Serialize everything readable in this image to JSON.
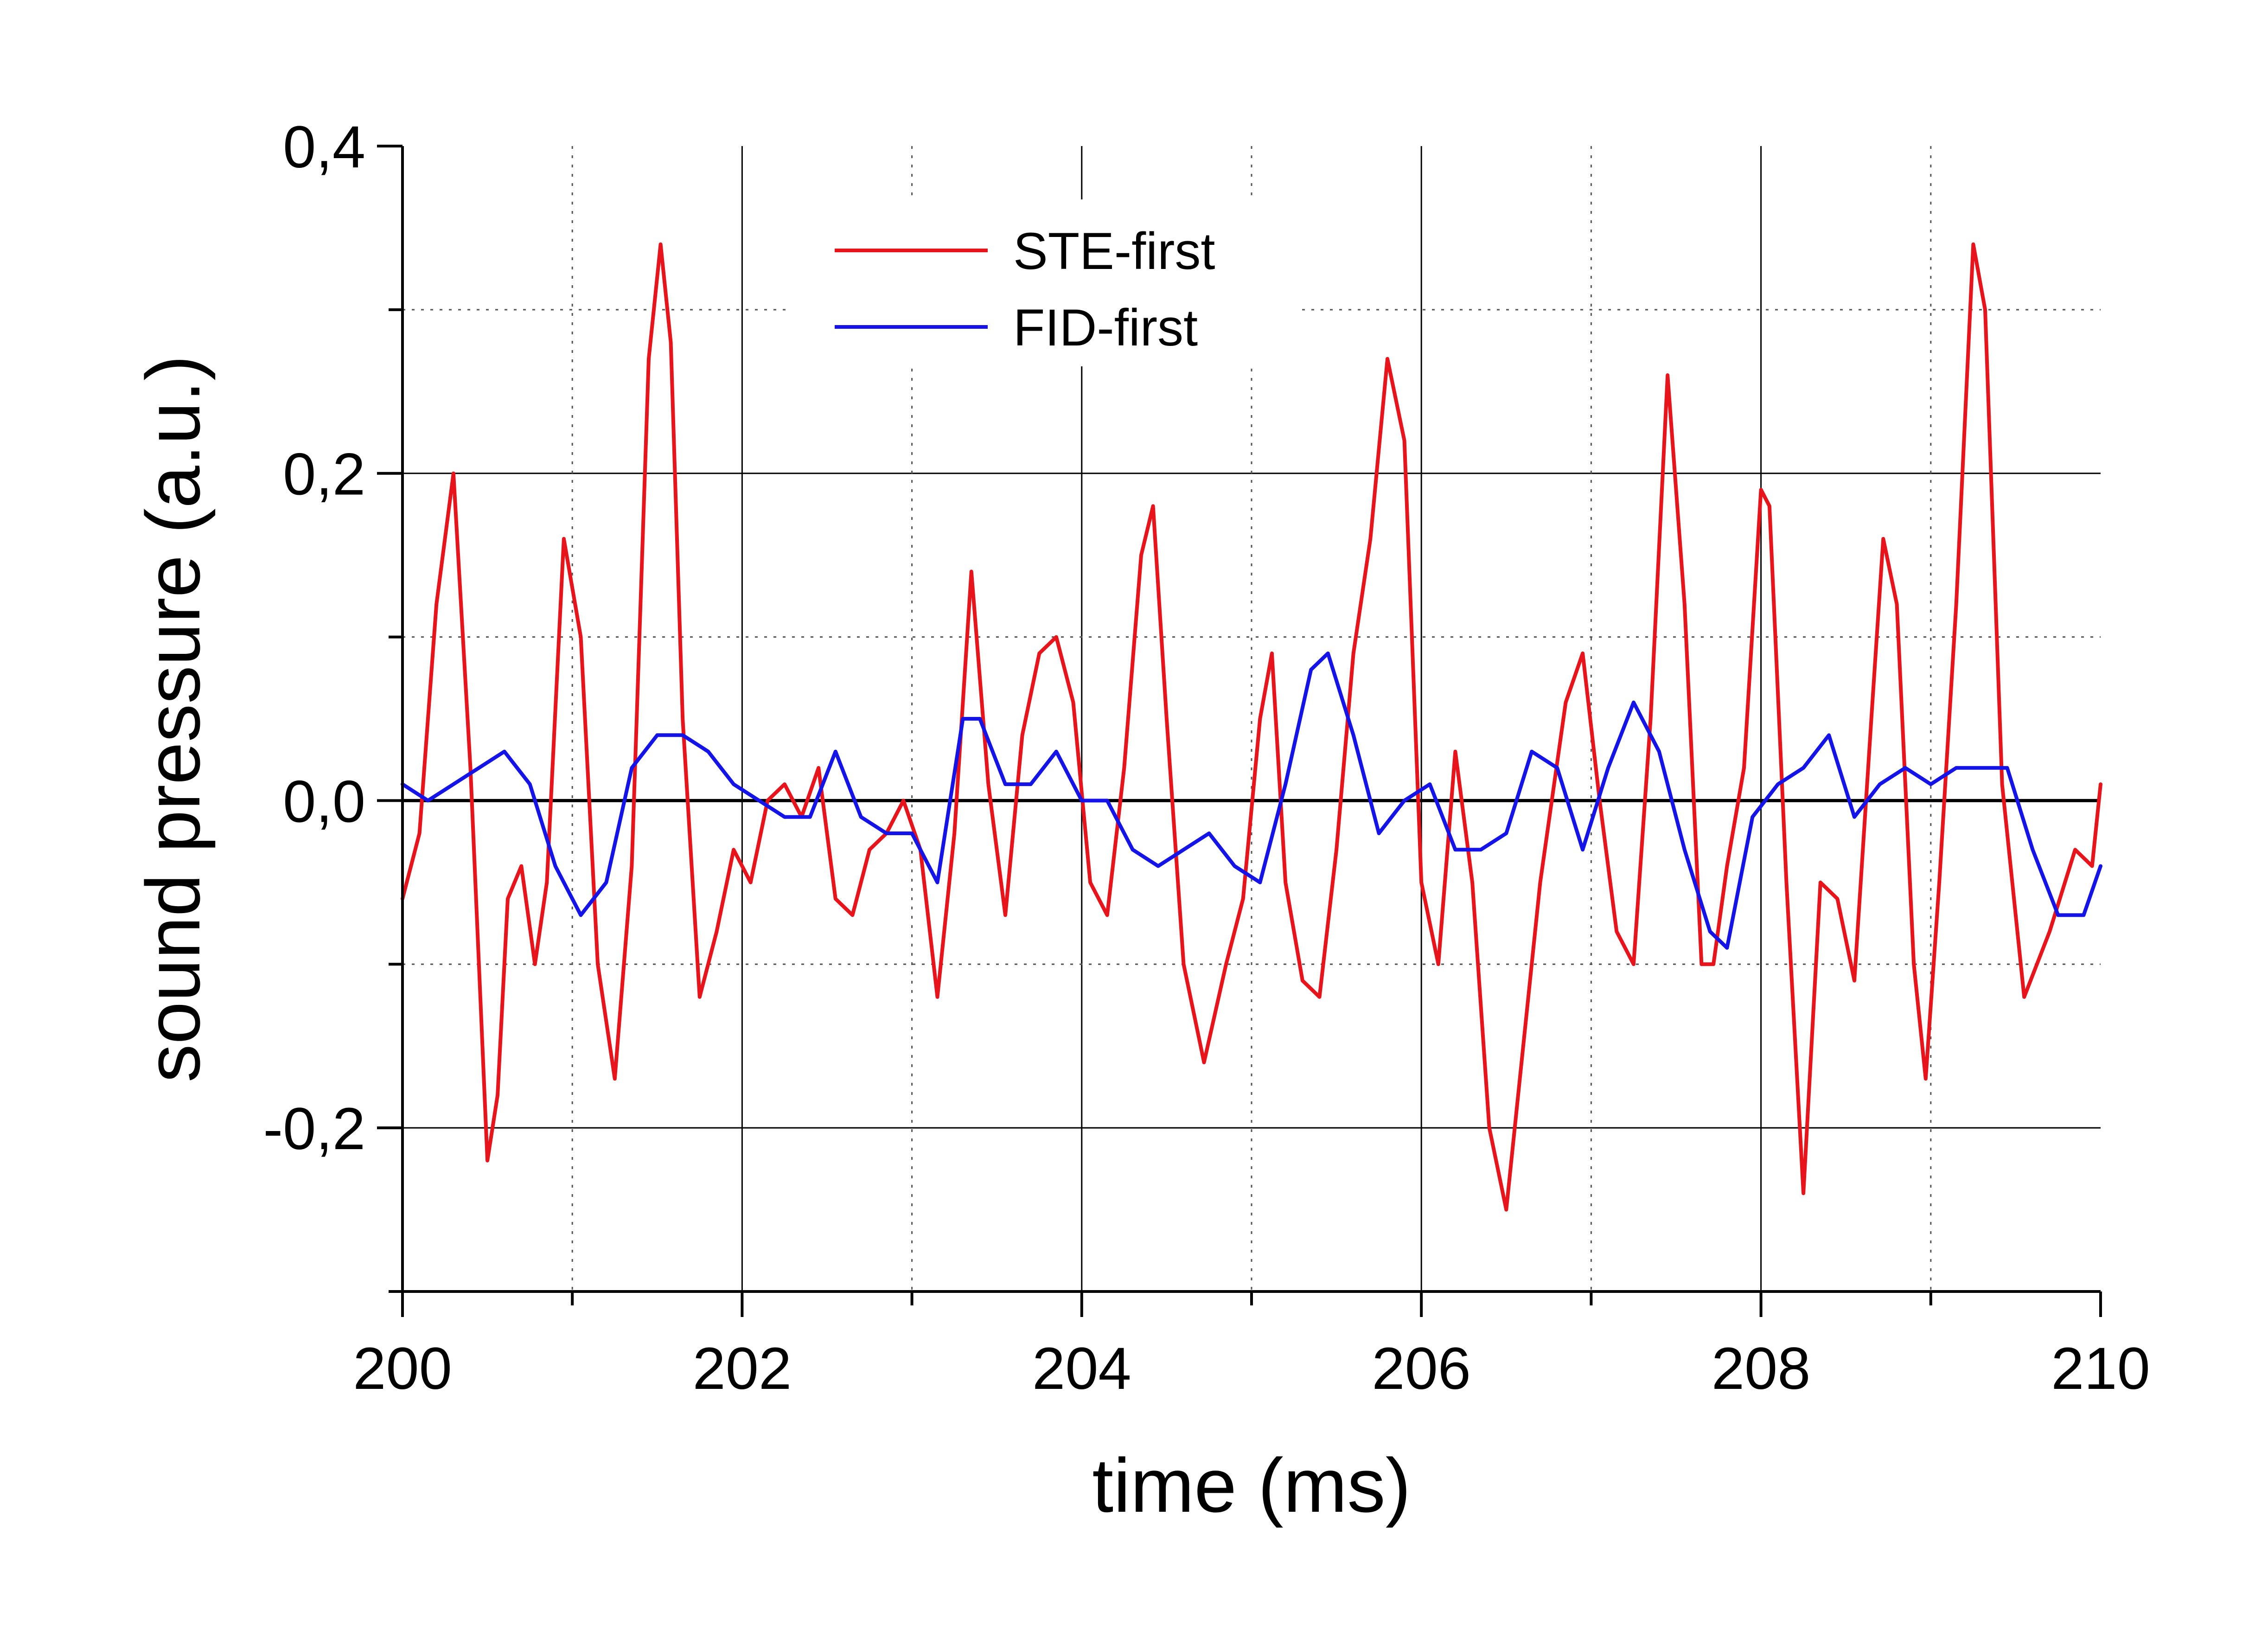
{
  "chart_data": {
    "type": "line",
    "title": "",
    "xlabel": "time (ms)",
    "ylabel": "sound pressure (a.u.)",
    "xlim": [
      200,
      210
    ],
    "ylim": [
      -0.3,
      0.4
    ],
    "x_major_ticks": [
      200,
      202,
      204,
      206,
      208,
      210
    ],
    "x_major_tick_labels": [
      "200",
      "202",
      "204",
      "206",
      "208",
      "210"
    ],
    "x_minor_ticks": [
      201,
      203,
      205,
      207,
      209
    ],
    "y_major_ticks": [
      -0.2,
      0.0,
      0.2,
      0.4
    ],
    "y_major_tick_labels": [
      "-0,2",
      "0,0",
      "0,2",
      "0,4"
    ],
    "y_minor_ticks": [
      -0.3,
      -0.1,
      0.1,
      0.3
    ],
    "grid": true,
    "legend": {
      "position": "top-center"
    },
    "series": [
      {
        "name": "STE-first",
        "color": "#e8141c",
        "x": [
          200.0,
          200.1,
          200.2,
          200.3,
          200.4,
          200.5,
          200.56,
          200.62,
          200.7,
          200.78,
          200.85,
          200.95,
          201.05,
          201.15,
          201.25,
          201.35,
          201.45,
          201.52,
          201.58,
          201.65,
          201.75,
          201.85,
          201.95,
          202.05,
          202.15,
          202.25,
          202.35,
          202.45,
          202.55,
          202.65,
          202.75,
          202.85,
          202.95,
          203.05,
          203.15,
          203.25,
          203.35,
          203.45,
          203.55,
          203.65,
          203.75,
          203.85,
          203.95,
          204.05,
          204.15,
          204.25,
          204.35,
          204.42,
          204.5,
          204.6,
          204.72,
          204.85,
          204.95,
          205.05,
          205.12,
          205.2,
          205.3,
          205.4,
          205.5,
          205.6,
          205.7,
          205.8,
          205.9,
          206.0,
          206.1,
          206.2,
          206.3,
          206.4,
          206.5,
          206.6,
          206.7,
          206.85,
          206.95,
          207.05,
          207.15,
          207.25,
          207.35,
          207.45,
          207.55,
          207.65,
          207.72,
          207.8,
          207.9,
          208.0,
          208.05,
          208.15,
          208.25,
          208.35,
          208.45,
          208.55,
          208.65,
          208.72,
          208.8,
          208.9,
          208.97,
          209.05,
          209.15,
          209.25,
          209.32,
          209.42,
          209.55,
          209.7,
          209.85,
          209.95,
          210.0
        ],
        "values": [
          -0.06,
          -0.02,
          0.12,
          0.2,
          0.02,
          -0.22,
          -0.18,
          -0.06,
          -0.04,
          -0.1,
          -0.05,
          0.16,
          0.1,
          -0.1,
          -0.17,
          -0.04,
          0.27,
          0.34,
          0.28,
          0.05,
          -0.12,
          -0.08,
          -0.03,
          -0.05,
          0.0,
          0.01,
          -0.01,
          0.02,
          -0.06,
          -0.07,
          -0.03,
          -0.02,
          0.0,
          -0.03,
          -0.12,
          -0.02,
          0.14,
          0.01,
          -0.07,
          0.04,
          0.09,
          0.1,
          0.06,
          -0.05,
          -0.07,
          0.02,
          0.15,
          0.18,
          0.05,
          -0.1,
          -0.16,
          -0.1,
          -0.06,
          0.05,
          0.09,
          -0.05,
          -0.11,
          -0.12,
          -0.03,
          0.09,
          0.16,
          0.27,
          0.22,
          -0.05,
          -0.1,
          0.03,
          -0.05,
          -0.2,
          -0.25,
          -0.15,
          -0.05,
          0.06,
          0.09,
          0.0,
          -0.08,
          -0.1,
          0.05,
          0.26,
          0.12,
          -0.1,
          -0.1,
          -0.04,
          0.02,
          0.19,
          0.18,
          -0.05,
          -0.24,
          -0.05,
          -0.06,
          -0.11,
          0.05,
          0.16,
          0.12,
          -0.1,
          -0.17,
          -0.05,
          0.12,
          0.34,
          0.3,
          0.01,
          -0.12,
          -0.08,
          -0.03,
          -0.04,
          0.01
        ]
      },
      {
        "name": "FID-first",
        "color": "#1414e8",
        "x": [
          200.0,
          200.15,
          200.3,
          200.45,
          200.6,
          200.75,
          200.9,
          201.05,
          201.2,
          201.35,
          201.5,
          201.65,
          201.8,
          201.95,
          202.1,
          202.25,
          202.4,
          202.55,
          202.7,
          202.85,
          203.0,
          203.15,
          203.3,
          203.4,
          203.55,
          203.7,
          203.85,
          204.0,
          204.15,
          204.3,
          204.45,
          204.6,
          204.75,
          204.9,
          205.05,
          205.2,
          205.35,
          205.45,
          205.6,
          205.75,
          205.9,
          206.05,
          206.2,
          206.35,
          206.5,
          206.65,
          206.8,
          206.95,
          207.1,
          207.25,
          207.4,
          207.55,
          207.7,
          207.8,
          207.95,
          208.1,
          208.25,
          208.4,
          208.55,
          208.7,
          208.85,
          209.0,
          209.15,
          209.3,
          209.45,
          209.6,
          209.75,
          209.9,
          210.0
        ],
        "values": [
          0.01,
          0.0,
          0.01,
          0.02,
          0.03,
          0.01,
          -0.04,
          -0.07,
          -0.05,
          0.02,
          0.04,
          0.04,
          0.03,
          0.01,
          0.0,
          -0.01,
          -0.01,
          0.03,
          -0.01,
          -0.02,
          -0.02,
          -0.05,
          0.05,
          0.05,
          0.01,
          0.01,
          0.03,
          0.0,
          0.0,
          -0.03,
          -0.04,
          -0.03,
          -0.02,
          -0.04,
          -0.05,
          0.01,
          0.08,
          0.09,
          0.04,
          -0.02,
          0.0,
          0.01,
          -0.03,
          -0.03,
          -0.02,
          0.03,
          0.02,
          -0.03,
          0.02,
          0.06,
          0.03,
          -0.03,
          -0.08,
          -0.09,
          -0.01,
          0.01,
          0.02,
          0.04,
          -0.01,
          0.01,
          0.02,
          0.01,
          0.02,
          0.02,
          0.02,
          -0.03,
          -0.07,
          -0.07,
          -0.04
        ]
      }
    ]
  }
}
